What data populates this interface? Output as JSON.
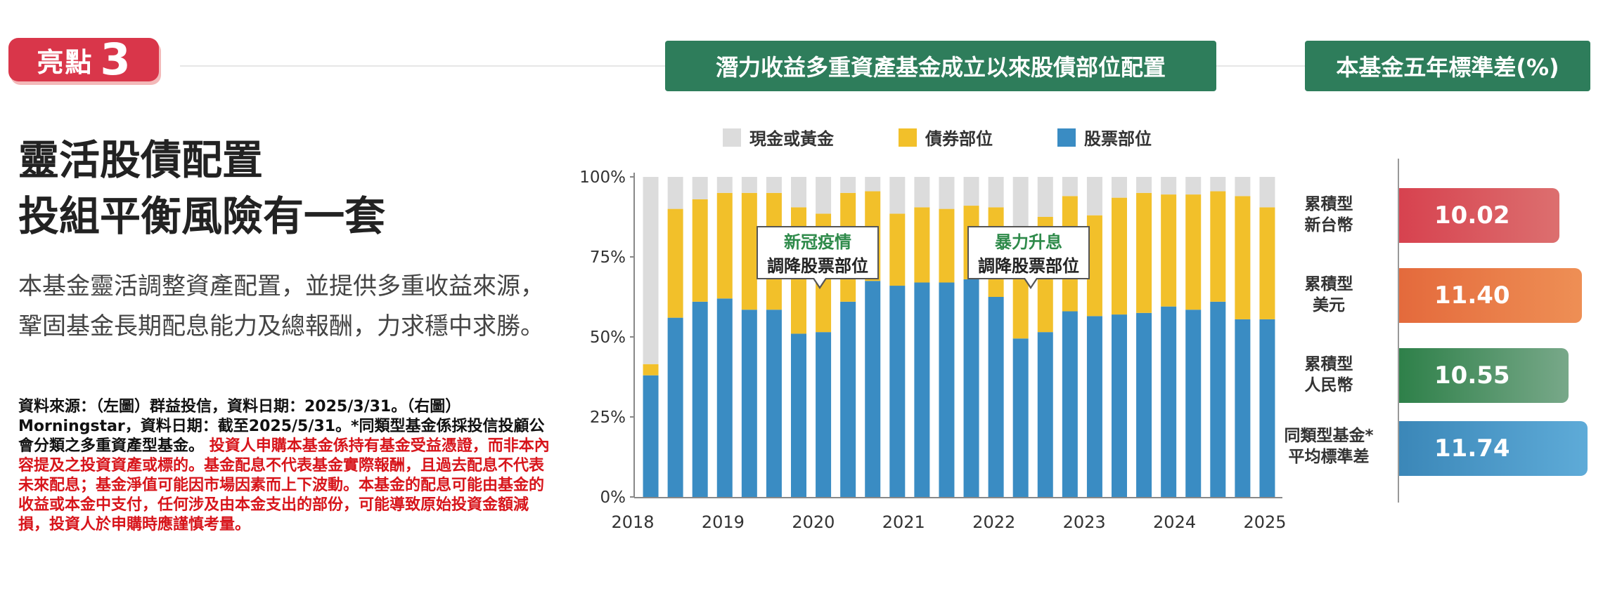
{
  "badge": {
    "label": "亮點",
    "number": "3"
  },
  "headline": {
    "line1": "靈活股債配置",
    "line2": "投組平衡風險有一套"
  },
  "description": "本基金靈活調整資產配置，並提供多重收益來源，鞏固基金長期配息能力及總報酬，力求穩中求勝。",
  "source": {
    "black": "資料來源：（左圖）群益投信，資料日期：2025/3/31。（右圖）Morningstar，資料日期：截至2025/5/31。*同類型基金係採投信投顧公會分類之多重資產型基金。",
    "red": "投資人申購本基金係持有基金受益憑證，而非本內容提及之投資資產或標的。基金配息不代表基金實際報酬，且過去配息不代表未來配息；基金淨值可能因市場因素而上下波動。本基金的配息可能由基金的收益或本金中支付，任何涉及由本金支出的部份，可能導致原始投資金額減損，投資人於申購時應謹慎考量。"
  },
  "chart_header": "潛力收益多重資產基金成立以來股債部位配置",
  "sd_header": "本基金五年標準差(%)",
  "legend": [
    {
      "label": "現金或黃金",
      "color": "#dcdcdc"
    },
    {
      "label": "債券部位",
      "color": "#f2c02a"
    },
    {
      "label": "股票部位",
      "color": "#3a8cc3"
    }
  ],
  "callouts": [
    {
      "line1": "新冠疫情",
      "line2": "調降股票部位"
    },
    {
      "line1": "暴力升息",
      "line2": "調降股票部位"
    }
  ],
  "chart_data": {
    "type": "bar",
    "stacked": true,
    "ylim": [
      0,
      100
    ],
    "yticks": [
      "0%",
      "25%",
      "50%",
      "75%",
      "100%"
    ],
    "xtick_labels": [
      "2018",
      "2019",
      "2020",
      "2021",
      "2022",
      "2023",
      "2024",
      "2025"
    ],
    "series": [
      {
        "name": "股票部位",
        "values": [
          38,
          56,
          61,
          62,
          58.5,
          58.5,
          51,
          51.5,
          61,
          67.5,
          66,
          67,
          67,
          68,
          62.5,
          49.5,
          51.5,
          58,
          56.5,
          57,
          57.5,
          59.5,
          58.5,
          61,
          55.5,
          55.5
        ]
      },
      {
        "name": "債券部位",
        "values": [
          3.5,
          34,
          32,
          33,
          36.5,
          36.5,
          39.5,
          37,
          34,
          28,
          22.5,
          23.5,
          23,
          23,
          28,
          35,
          36,
          36,
          31.5,
          36.5,
          37.5,
          35,
          36,
          34.5,
          38.5,
          35
        ]
      },
      {
        "name": "現金或黃金",
        "values": [
          58.5,
          10,
          7,
          5,
          5,
          5,
          9.5,
          11.5,
          5,
          4.5,
          11.5,
          9.5,
          10,
          9,
          9.5,
          15.5,
          12.5,
          6,
          12,
          6.5,
          5,
          5.5,
          5.5,
          4.5,
          6,
          9.5
        ]
      }
    ]
  },
  "sd_chart": {
    "type": "bar",
    "orientation": "horizontal",
    "xlim": [
      0,
      12
    ],
    "bars": [
      {
        "label_line1": "累積型",
        "label_line2": "新台幣",
        "value": 10.02,
        "value_text": "10.02",
        "color": "#d7424f",
        "color2": "#dc6f6f"
      },
      {
        "label_line1": "累積型",
        "label_line2": "美元",
        "value": 11.4,
        "value_text": "11.40",
        "color": "#e46a3c",
        "color2": "#ee8f55"
      },
      {
        "label_line1": "累積型",
        "label_line2": "人民幣",
        "value": 10.55,
        "value_text": "10.55",
        "color": "#2e8049",
        "color2": "#78a889"
      },
      {
        "label_line1": "同類型基金*",
        "label_line2": "平均標準差",
        "value": 11.74,
        "value_text": "11.74",
        "color": "#3b87b8",
        "color2": "#5eabd8"
      }
    ]
  }
}
